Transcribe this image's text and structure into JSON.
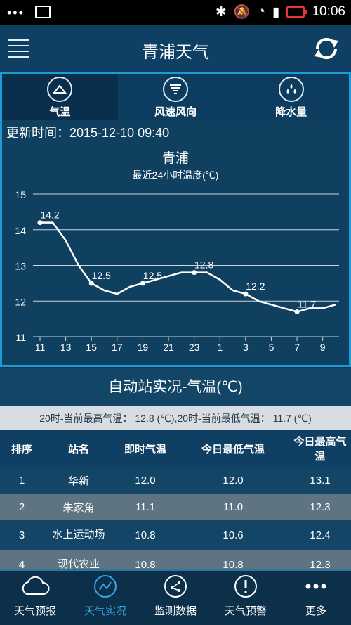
{
  "status": {
    "time": "10:06",
    "dots": "•••"
  },
  "header": {
    "title": "青浦天气"
  },
  "tabs": [
    {
      "label": "气温",
      "active": true
    },
    {
      "label": "风速风向",
      "active": false
    },
    {
      "label": "降水量",
      "active": false
    }
  ],
  "updated": "更新时间：2015-12-10 09:40",
  "chart_data": {
    "type": "line",
    "title": "青浦",
    "subtitle": "最近24小时温度(℃)",
    "x_ticks": [
      "11",
      "13",
      "15",
      "17",
      "19",
      "21",
      "23",
      "1",
      "3",
      "5",
      "7",
      "9"
    ],
    "y_ticks": [
      11,
      12,
      13,
      14,
      15
    ],
    "ylim": [
      11,
      15
    ],
    "grid": true,
    "series": [
      {
        "x": [
          11,
          12,
          13,
          14,
          15,
          16,
          17,
          18,
          19,
          20,
          21,
          22,
          23,
          24,
          25,
          26,
          27,
          28,
          29,
          30,
          31,
          32,
          33,
          34
        ],
        "values": [
          14.2,
          14.2,
          13.7,
          13.0,
          12.5,
          12.3,
          12.2,
          12.4,
          12.5,
          12.6,
          12.7,
          12.8,
          12.8,
          12.8,
          12.6,
          12.3,
          12.2,
          12.0,
          11.9,
          11.8,
          11.7,
          11.8,
          11.8,
          11.9
        ]
      }
    ],
    "annotations": [
      {
        "x": 11,
        "y": 14.2,
        "label": "14.2"
      },
      {
        "x": 15,
        "y": 12.5,
        "label": "12.5"
      },
      {
        "x": 19,
        "y": 12.5,
        "label": "12.5"
      },
      {
        "x": 23,
        "y": 12.8,
        "label": "12.8"
      },
      {
        "x": 27,
        "y": 12.2,
        "label": "12.2"
      },
      {
        "x": 31,
        "y": 11.7,
        "label": "11.7"
      }
    ]
  },
  "station": {
    "title": "自动站实况-气温(℃)",
    "summary": "20时-当前最高气温： 12.8 (℃),20时-当前最低气温： 11.7 (℃)",
    "headers": [
      "排序",
      "站名",
      "即时气温",
      "今日最低气温",
      "今日最高气温"
    ],
    "rows": [
      [
        "1",
        "华新",
        "12.0",
        "12.0",
        "13.1"
      ],
      [
        "2",
        "朱家角",
        "11.1",
        "11.0",
        "12.3"
      ],
      [
        "3",
        "水上运动场",
        "10.8",
        "10.6",
        "12.4"
      ],
      [
        "4",
        "现代农业",
        "10.8",
        "10.8",
        "12.3"
      ]
    ]
  },
  "nav": [
    {
      "label": "天气预报",
      "icon": "cloud-icon",
      "active": false
    },
    {
      "label": "天气实况",
      "icon": "chart-icon",
      "active": true
    },
    {
      "label": "监测数据",
      "icon": "share-icon",
      "active": false
    },
    {
      "label": "天气预警",
      "icon": "alert-icon",
      "active": false
    },
    {
      "label": "更多",
      "icon": "more-icon",
      "active": false
    }
  ]
}
